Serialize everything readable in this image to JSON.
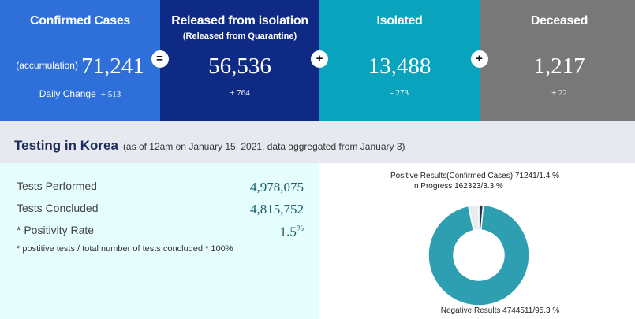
{
  "stats": [
    {
      "title": "Confirmed Cases",
      "prefix": "(accumulation)",
      "value": "71,241",
      "change_label": "Daily Change",
      "change": "+ 513",
      "color": "#2e6fd9"
    },
    {
      "title": "Released from isolation",
      "subtitle": "(Released from Quarantine)",
      "value": "56,536",
      "change": "+ 764",
      "color": "#0e2a85"
    },
    {
      "title": "Isolated",
      "value": "13,488",
      "change": "- 273",
      "color": "#0aa3bd"
    },
    {
      "title": "Deceased",
      "value": "1,217",
      "change": "+ 22",
      "color": "#787878"
    }
  ],
  "operators": [
    "=",
    "+",
    "+"
  ],
  "testing": {
    "title": "Testing in Korea",
    "note": "(as of 12am on January 15, 2021, data aggregated from January 3)",
    "rows": [
      {
        "label": "Tests Performed",
        "value": "4,978,075"
      },
      {
        "label": "Tests Concluded",
        "value": "4,815,752"
      },
      {
        "label": "* Positivity Rate",
        "value": "1.5",
        "unit": "%"
      }
    ],
    "footnote": "* postitive tests / total number of tests concluded * 100%"
  },
  "chart_data": {
    "type": "pie",
    "labels": [
      "Positive Results(Confirmed Cases) 71241/1.4 %",
      "Negative Results 4744511/95.3 %",
      "In Progress 162323/3.3 %"
    ],
    "values": [
      1.4,
      95.3,
      3.3
    ],
    "colors": [
      "#1e3550",
      "#2e9fb1",
      "#e8ecef"
    ]
  }
}
